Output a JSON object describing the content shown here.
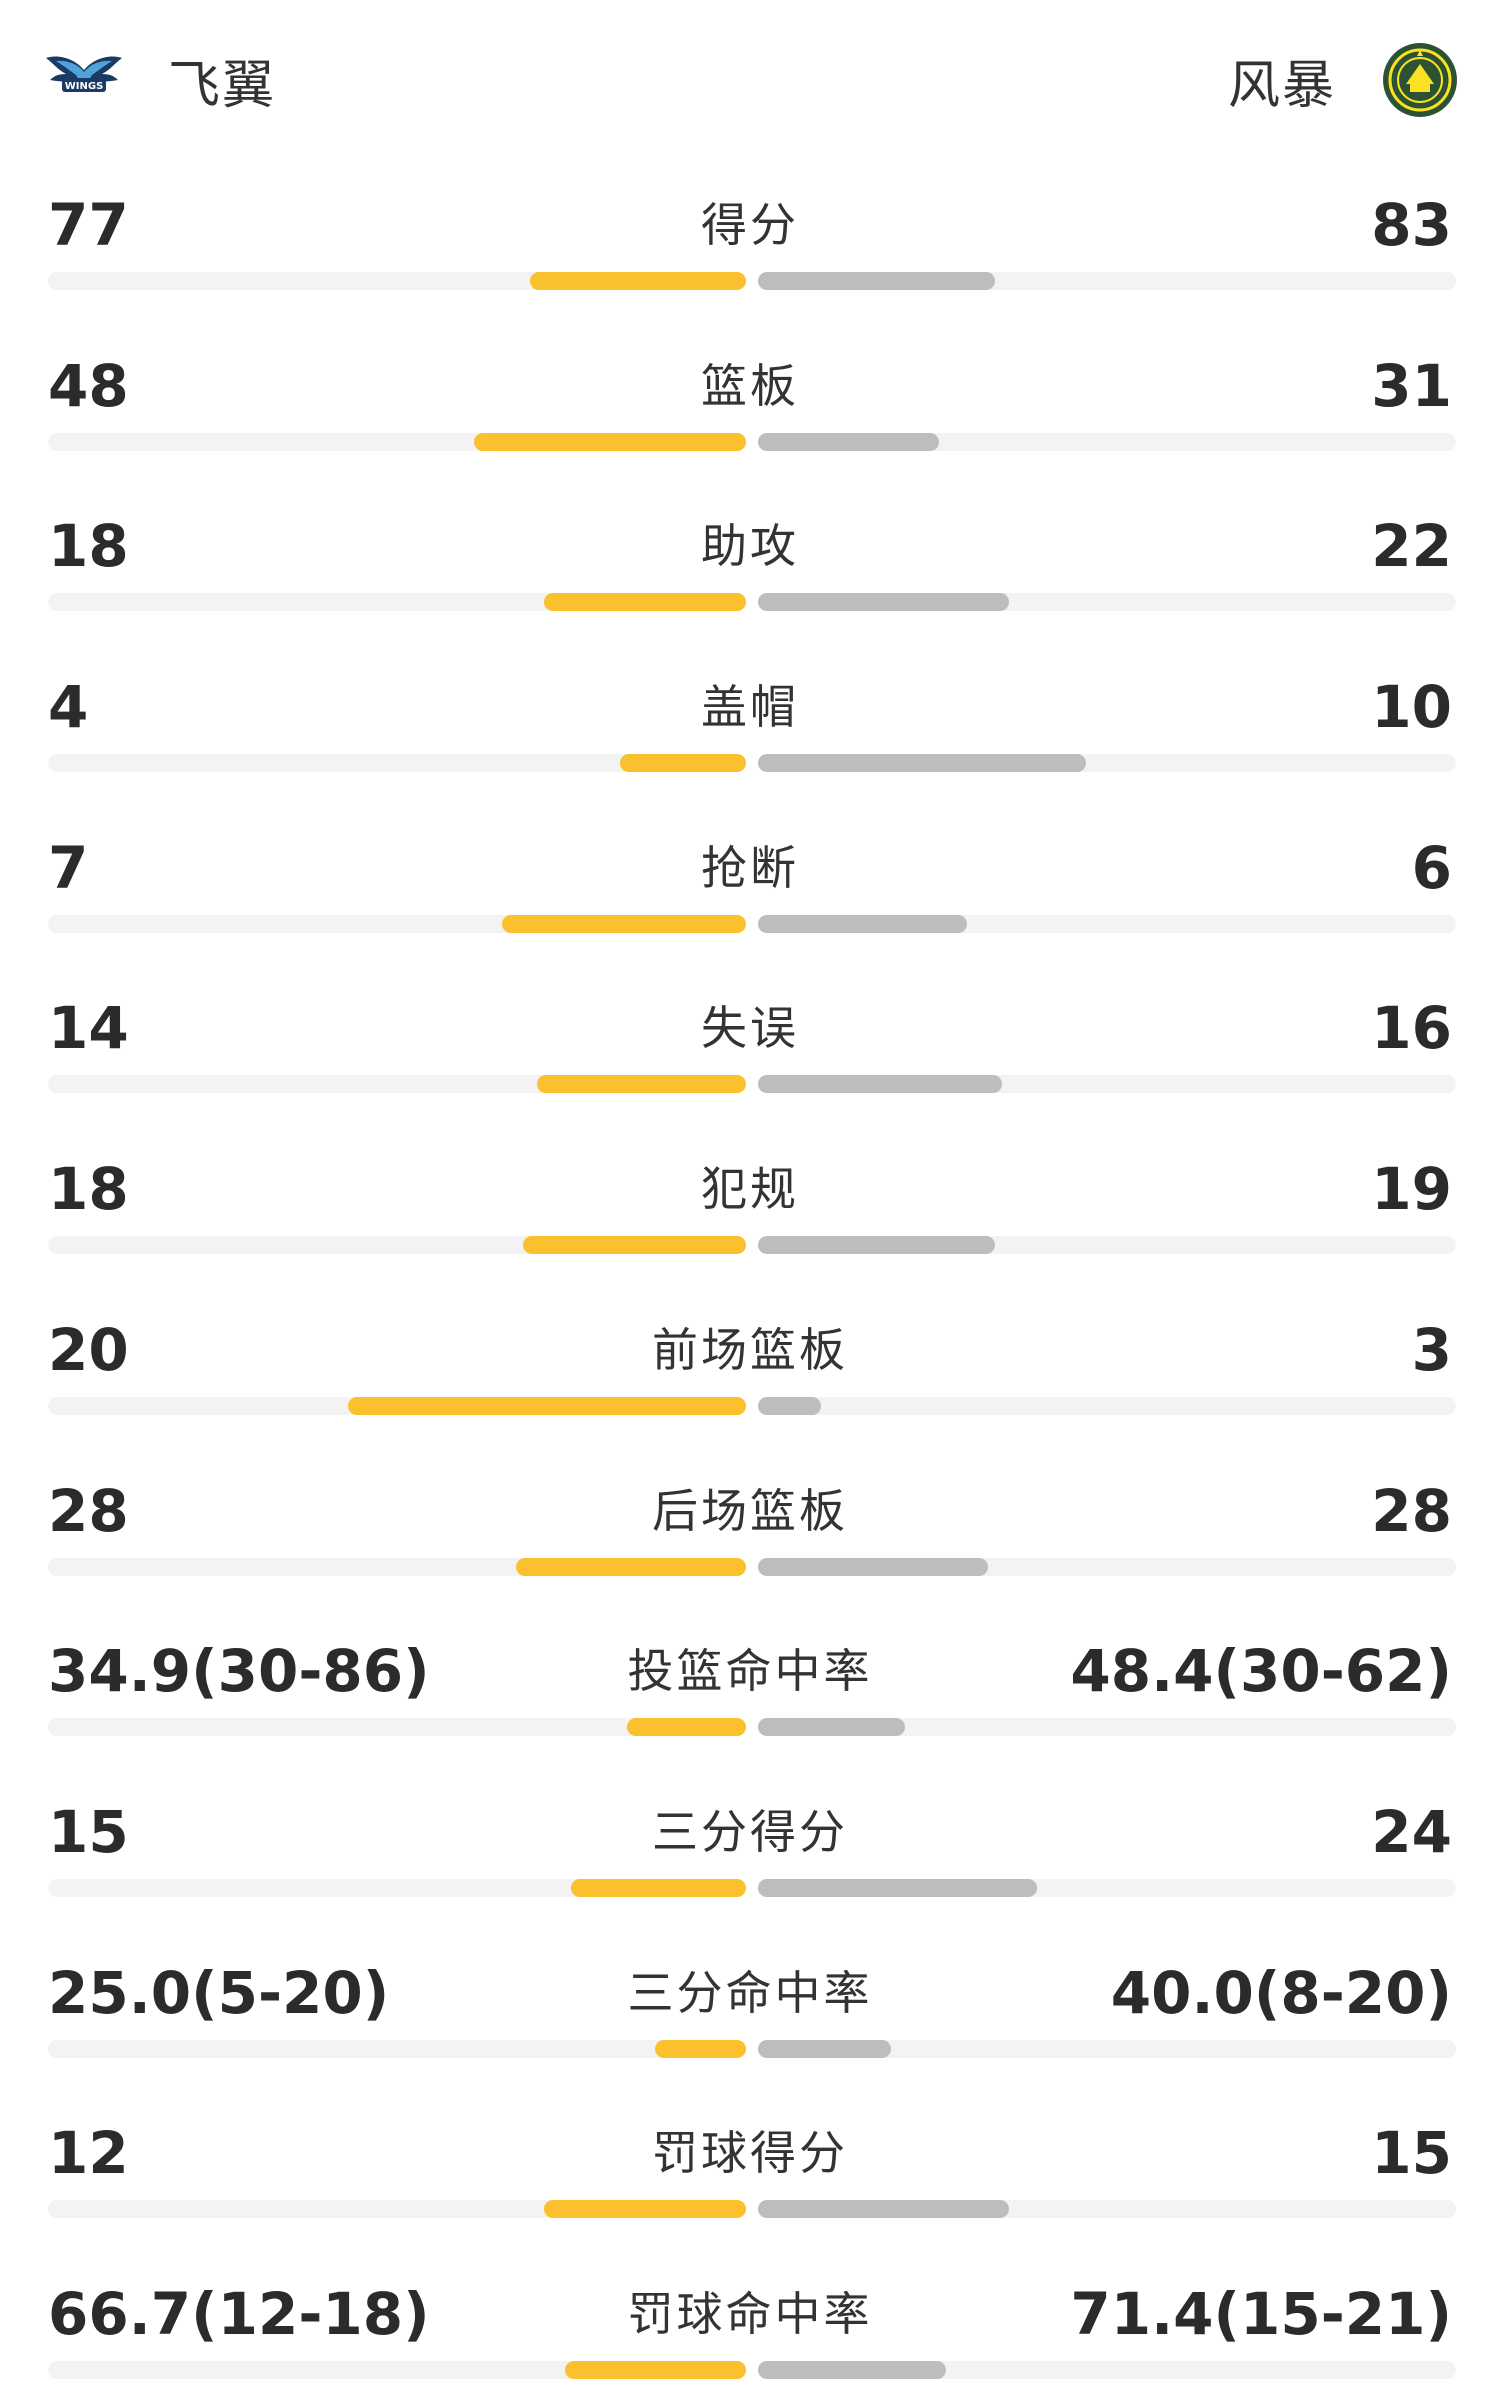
{
  "teams": {
    "left": {
      "name": "飞翼",
      "logo_icon": "wings-logo-icon",
      "color": "#fbc02d"
    },
    "right": {
      "name": "风暴",
      "logo_icon": "storm-logo-icon",
      "color": "#bdbdbd"
    }
  },
  "stats": [
    {
      "label": "得分",
      "left": "77",
      "right": "83",
      "left_fill": 0.31,
      "right_fill": 0.34
    },
    {
      "label": "篮板",
      "left": "48",
      "right": "31",
      "left_fill": 0.39,
      "right_fill": 0.26
    },
    {
      "label": "助攻",
      "left": "18",
      "right": "22",
      "left_fill": 0.29,
      "right_fill": 0.36
    },
    {
      "label": "盖帽",
      "left": "4",
      "right": "10",
      "left_fill": 0.18,
      "right_fill": 0.47
    },
    {
      "label": "抢断",
      "left": "7",
      "right": "6",
      "left_fill": 0.35,
      "right_fill": 0.3
    },
    {
      "label": "失误",
      "left": "14",
      "right": "16",
      "left_fill": 0.3,
      "right_fill": 0.35
    },
    {
      "label": "犯规",
      "left": "18",
      "right": "19",
      "left_fill": 0.32,
      "right_fill": 0.34
    },
    {
      "label": "前场篮板",
      "left": "20",
      "right": "3",
      "left_fill": 0.57,
      "right_fill": 0.09
    },
    {
      "label": "后场篮板",
      "left": "28",
      "right": "28",
      "left_fill": 0.33,
      "right_fill": 0.33
    },
    {
      "label": "投篮命中率",
      "left": "34.9(30-86)",
      "right": "48.4(30-62)",
      "left_fill": 0.17,
      "right_fill": 0.21
    },
    {
      "label": "三分得分",
      "left": "15",
      "right": "24",
      "left_fill": 0.25,
      "right_fill": 0.4
    },
    {
      "label": "三分命中率",
      "left": "25.0(5-20)",
      "right": "40.0(8-20)",
      "left_fill": 0.13,
      "right_fill": 0.19
    },
    {
      "label": "罚球得分",
      "left": "12",
      "right": "15",
      "left_fill": 0.29,
      "right_fill": 0.36
    },
    {
      "label": "罚球命中率",
      "left": "66.7(12-18)",
      "right": "71.4(15-21)",
      "left_fill": 0.26,
      "right_fill": 0.27
    }
  ]
}
